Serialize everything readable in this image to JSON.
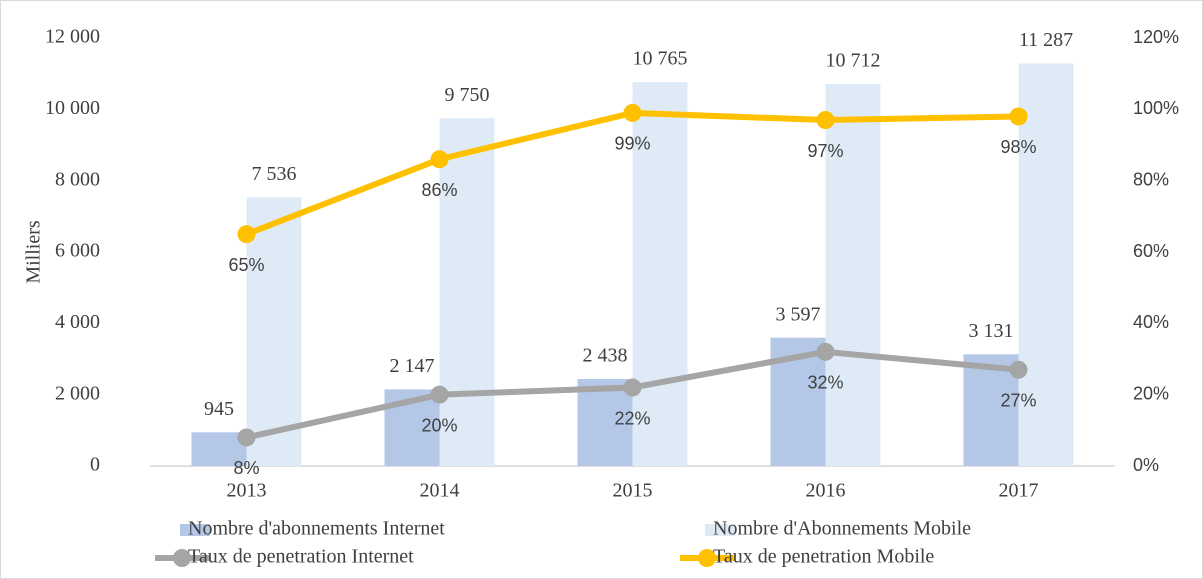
{
  "chart_data": {
    "type": "bar",
    "y_label": "Milliers",
    "categories": [
      "2013",
      "2014",
      "2015",
      "2016",
      "2017"
    ],
    "series": [
      {
        "name": "Nombre d'abonnements Internet",
        "color": "#b4c7e7",
        "values": [
          945,
          2147,
          2438,
          3597,
          3131
        ],
        "value_labels": [
          "945",
          "2 147",
          "2 438",
          "3 597",
          "3 131"
        ]
      },
      {
        "name": "Nombre d'Abonnements Mobile",
        "color": "#deebf7",
        "values": [
          7536,
          9750,
          10765,
          10712,
          11287
        ],
        "value_labels": [
          "7 536",
          "9 750",
          "10 765",
          "10 712",
          "11 287"
        ]
      },
      {
        "name": "Taux de penetration Internet",
        "type": "line",
        "axis": "y2",
        "color": "#a5a5a5",
        "values": [
          8,
          20,
          22,
          32,
          27
        ],
        "value_labels": [
          "8%",
          "20%",
          "22%",
          "32%",
          "27%"
        ]
      },
      {
        "name": "Taux de penetration Mobile",
        "type": "line",
        "axis": "y2",
        "color": "#ffc000",
        "values": [
          65,
          86,
          99,
          97,
          98
        ],
        "value_labels": [
          "65%",
          "86%",
          "99%",
          "97%",
          "98%"
        ]
      }
    ],
    "ylim": [
      0,
      12000
    ],
    "yticks": [
      0,
      {
        "value": 2000,
        "label": "2 000"
      },
      {
        "value": 4000,
        "label": "4 000"
      },
      {
        "value": 6000,
        "label": "6 000"
      },
      {
        "value": 8000,
        "label": "8 000"
      },
      {
        "value": 10000,
        "label": "10 000"
      },
      {
        "value": 12000,
        "label": "12 000"
      }
    ],
    "y2lim": [
      0,
      120
    ],
    "y2ticks": [
      {
        "value": 0,
        "label": "0%"
      },
      {
        "value": 20,
        "label": "20%"
      },
      {
        "value": 40,
        "label": "40%"
      },
      {
        "value": 60,
        "label": "60%"
      },
      {
        "value": 80,
        "label": "80%"
      },
      {
        "value": 100,
        "label": "100%"
      },
      {
        "value": 120,
        "label": "120%"
      }
    ],
    "legend": "bottom"
  }
}
